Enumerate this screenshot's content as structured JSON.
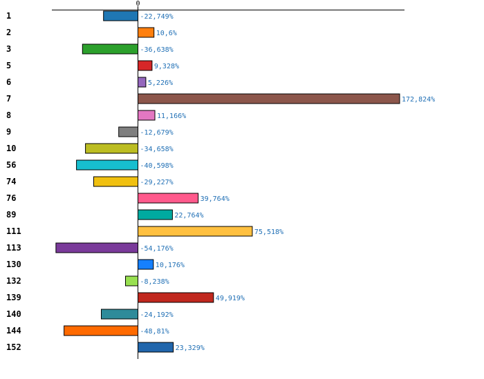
{
  "chart_data": {
    "type": "bar",
    "orientation": "horizontal",
    "title": "",
    "xlabel": "",
    "ylabel": "",
    "x_tick_labels": [
      "0"
    ],
    "xlim": [
      -100,
      200
    ],
    "grid": false,
    "categories": [
      "1",
      "2",
      "3",
      "5",
      "6",
      "7",
      "8",
      "9",
      "10",
      "56",
      "74",
      "76",
      "89",
      "111",
      "113",
      "130",
      "132",
      "139",
      "140",
      "144",
      "152"
    ],
    "values": [
      -22.749,
      10.6,
      -36.638,
      9.328,
      5.226,
      172.824,
      11.166,
      -12.679,
      -34.658,
      -40.598,
      -29.227,
      39.764,
      22.764,
      75.518,
      -54.176,
      10.176,
      -8.238,
      49.919,
      -24.192,
      -48.81,
      23.329
    ],
    "value_labels": [
      "-22,749%",
      "10,6%",
      "-36,638%",
      "9,328%",
      "5,226%",
      "172,824%",
      "11,166%",
      "-12,679%",
      "-34,658%",
      "-40,598%",
      "-29,227%",
      "39,764%",
      "22,764%",
      "75,518%",
      "-54,176%",
      "10,176%",
      "-8,238%",
      "49,919%",
      "-24,192%",
      "-48,81%",
      "23,329%"
    ],
    "colors": [
      "#1f77b4",
      "#ff7f0e",
      "#2ca02c",
      "#d62728",
      "#9467bd",
      "#8c564b",
      "#e377c2",
      "#7f7f7f",
      "#bcbd22",
      "#17becf",
      "#f0c010",
      "#ff5a8c",
      "#00aaa0",
      "#ffc040",
      "#7a3a9a",
      "#1680ff",
      "#98e050",
      "#c0281e",
      "#2e8b9a",
      "#ff6a00",
      "#2166ac"
    ],
    "label_color": "#1f6fb5"
  }
}
